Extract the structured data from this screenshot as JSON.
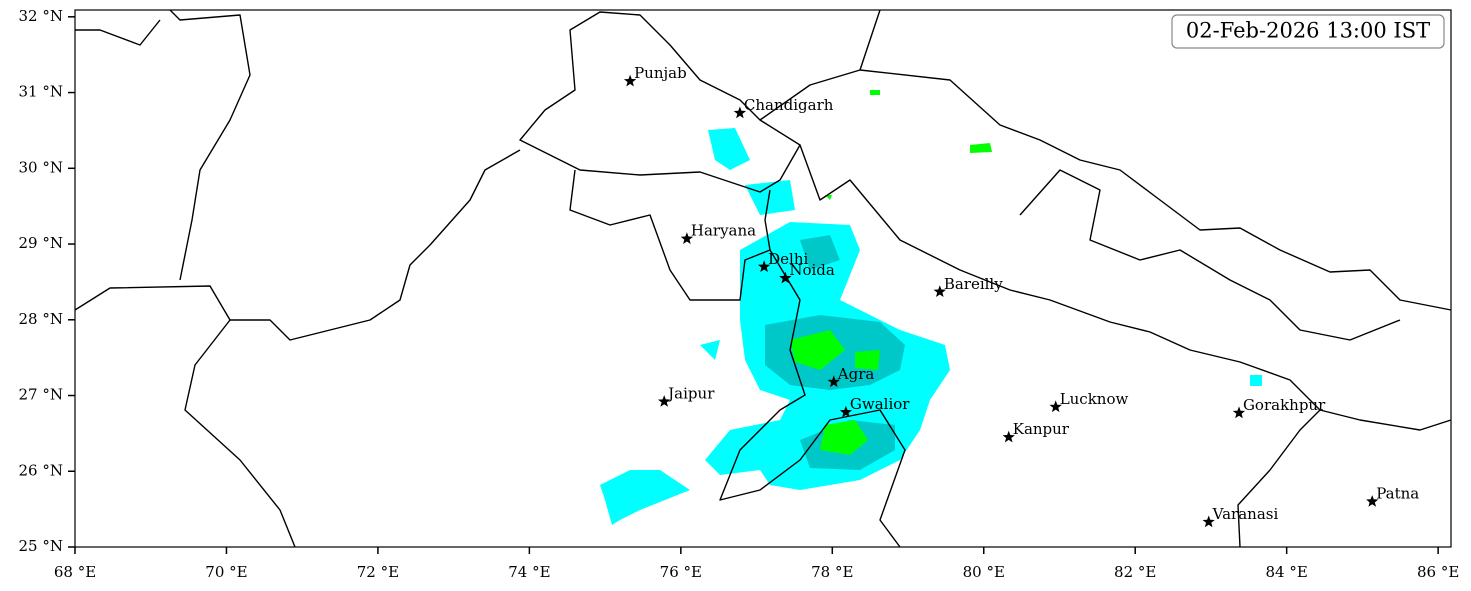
{
  "timestamp": "02-Feb-2026 13:00 IST",
  "map": {
    "xlim": [
      68,
      86.17
    ],
    "ylim": [
      25,
      32.09
    ],
    "xticks": [
      {
        "value": 68,
        "label": "68 °E"
      },
      {
        "value": 70,
        "label": "70 °E"
      },
      {
        "value": 72,
        "label": "72 °E"
      },
      {
        "value": 74,
        "label": "74 °E"
      },
      {
        "value": 76,
        "label": "76 °E"
      },
      {
        "value": 78,
        "label": "78 °E"
      },
      {
        "value": 80,
        "label": "80 °E"
      },
      {
        "value": 82,
        "label": "82 °E"
      },
      {
        "value": 84,
        "label": "84 °E"
      },
      {
        "value": 86,
        "label": "86 °E"
      }
    ],
    "yticks": [
      {
        "value": 25,
        "label": "25 °N"
      },
      {
        "value": 26,
        "label": "26 °N"
      },
      {
        "value": 27,
        "label": "27 °N"
      },
      {
        "value": 28,
        "label": "28 °N"
      },
      {
        "value": 29,
        "label": "29 °N"
      },
      {
        "value": 30,
        "label": "30 °N"
      },
      {
        "value": 31,
        "label": "31 °N"
      },
      {
        "value": 32,
        "label": "32 °N"
      }
    ],
    "cities": [
      {
        "name": "Punjab",
        "lon": 75.33,
        "lat": 31.15
      },
      {
        "name": "Chandigarh",
        "lon": 76.78,
        "lat": 30.73
      },
      {
        "name": "Haryana",
        "lon": 76.08,
        "lat": 29.07
      },
      {
        "name": "Delhi",
        "lon": 77.1,
        "lat": 28.7
      },
      {
        "name": "Noida",
        "lon": 77.38,
        "lat": 28.55
      },
      {
        "name": "Bareilly",
        "lon": 79.42,
        "lat": 28.37
      },
      {
        "name": "Agra",
        "lon": 78.02,
        "lat": 27.18
      },
      {
        "name": "Jaipur",
        "lon": 75.78,
        "lat": 26.92
      },
      {
        "name": "Gwalior",
        "lon": 78.18,
        "lat": 26.78
      },
      {
        "name": "Lucknow",
        "lon": 80.95,
        "lat": 26.85
      },
      {
        "name": "Kanpur",
        "lon": 80.33,
        "lat": 26.45
      },
      {
        "name": "Gorakhpur",
        "lon": 83.37,
        "lat": 26.77
      },
      {
        "name": "Varanasi",
        "lon": 82.97,
        "lat": 25.33
      },
      {
        "name": "Patna",
        "lon": 85.13,
        "lat": 25.6
      }
    ]
  }
}
